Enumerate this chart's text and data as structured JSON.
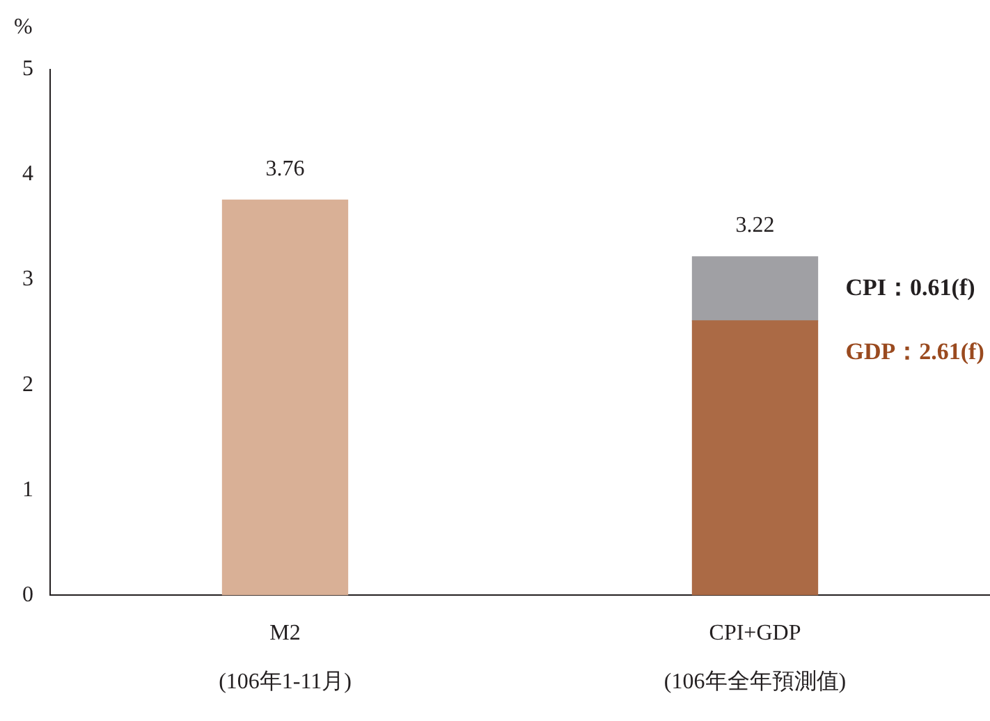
{
  "chart_data": {
    "type": "bar",
    "ylabel": "%",
    "categories": [
      "M2\n(106年1-11月)",
      "CPI+GDP\n(106年全年預測值)"
    ],
    "stacked": true,
    "series": [
      {
        "color": "#d9b096",
        "values": [
          3.76,
          null
        ]
      },
      {
        "name": "GDP：2.61(f)",
        "color": "#ab6a45",
        "values": [
          null,
          2.61
        ]
      },
      {
        "name": "CPI：0.61(f)",
        "color": "#a0a0a4",
        "values": [
          null,
          0.61
        ]
      }
    ],
    "totals": [
      "3.76",
      "3.22"
    ],
    "ylim": [
      0,
      5
    ],
    "yticks": [
      0,
      1,
      2,
      3,
      4,
      5
    ],
    "grid": false,
    "legend": false
  }
}
